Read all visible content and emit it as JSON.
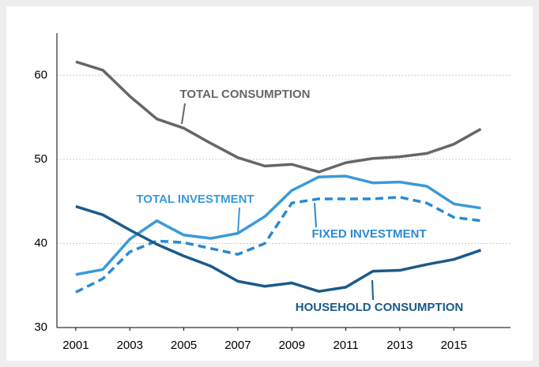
{
  "chart_data": {
    "type": "line",
    "x": [
      2001,
      2002,
      2003,
      2004,
      2005,
      2006,
      2007,
      2008,
      2009,
      2010,
      2011,
      2012,
      2013,
      2014,
      2015,
      2016
    ],
    "series": [
      {
        "name": "TOTAL CONSUMPTION",
        "color": "#666666",
        "dashed": false,
        "values": [
          61.6,
          60.6,
          57.5,
          54.8,
          53.7,
          51.9,
          50.2,
          49.2,
          49.4,
          48.5,
          49.6,
          50.1,
          50.3,
          50.7,
          51.8,
          53.6
        ]
      },
      {
        "name": "TOTAL INVESTMENT",
        "color": "#3a9ad9",
        "dashed": false,
        "values": [
          36.3,
          36.9,
          40.5,
          42.7,
          41.0,
          40.6,
          41.2,
          43.2,
          46.3,
          47.9,
          48.0,
          47.2,
          47.3,
          46.8,
          44.7,
          44.2
        ]
      },
      {
        "name": "FIXED INVESTMENT",
        "color": "#2a8ad0",
        "dashed": true,
        "values": [
          34.2,
          35.8,
          39.0,
          40.3,
          40.1,
          39.4,
          38.7,
          40.0,
          44.8,
          45.3,
          45.3,
          45.3,
          45.5,
          44.8,
          43.1,
          42.7
        ]
      },
      {
        "name": "HOUSEHOLD CONSUMPTION",
        "color": "#1b5a8a",
        "dashed": false,
        "values": [
          44.4,
          43.4,
          41.6,
          39.9,
          38.5,
          37.3,
          35.5,
          34.9,
          35.3,
          34.3,
          34.8,
          36.7,
          36.8,
          37.5,
          38.1,
          39.2
        ]
      }
    ],
    "xlim": [
      2000.3,
      2017.1
    ],
    "xticks": [
      2001,
      2003,
      2005,
      2007,
      2009,
      2011,
      2013,
      2015
    ],
    "ylim": [
      30,
      65
    ],
    "yticks": [
      30,
      40,
      50,
      60
    ],
    "grid": true
  }
}
